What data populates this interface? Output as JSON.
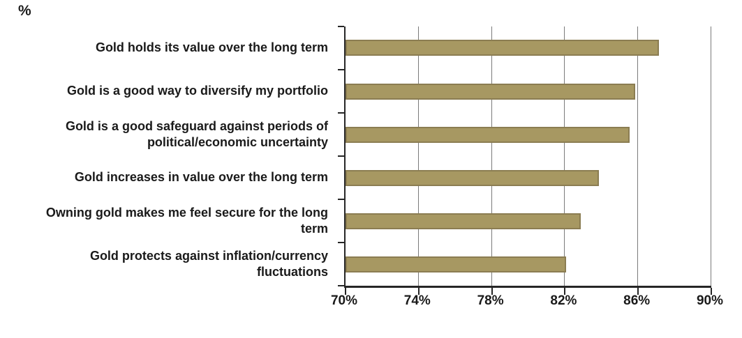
{
  "chart_data": {
    "type": "bar",
    "orientation": "horizontal",
    "title": "%",
    "categories": [
      "Gold holds its value over the long term",
      "Gold is a good way to diversify my portfolio",
      "Gold is a good safeguard against periods of\npolitical/economic uncertainty",
      "Gold increases in value over the long term",
      "Owning gold makes me feel secure  for the long\nterm",
      "Gold protects against inflation/currency\nfluctuations"
    ],
    "values": [
      87.0,
      85.7,
      85.4,
      83.7,
      82.7,
      81.9
    ],
    "xlim": [
      70,
      90
    ],
    "xticks": [
      {
        "value": 70,
        "label": "70%"
      },
      {
        "value": 74,
        "label": "74%"
      },
      {
        "value": 78,
        "label": "78%"
      },
      {
        "value": 82,
        "label": "82%"
      },
      {
        "value": 86,
        "label": "86%"
      },
      {
        "value": 90,
        "label": "90%"
      }
    ],
    "legend": null,
    "grid": "vertical",
    "bar_color": "#A79862",
    "bar_border_color": "#8B7D52",
    "gridline_color": "#7A7A7A",
    "axis_color": "#262626",
    "text_color": "#1A1A1A"
  }
}
